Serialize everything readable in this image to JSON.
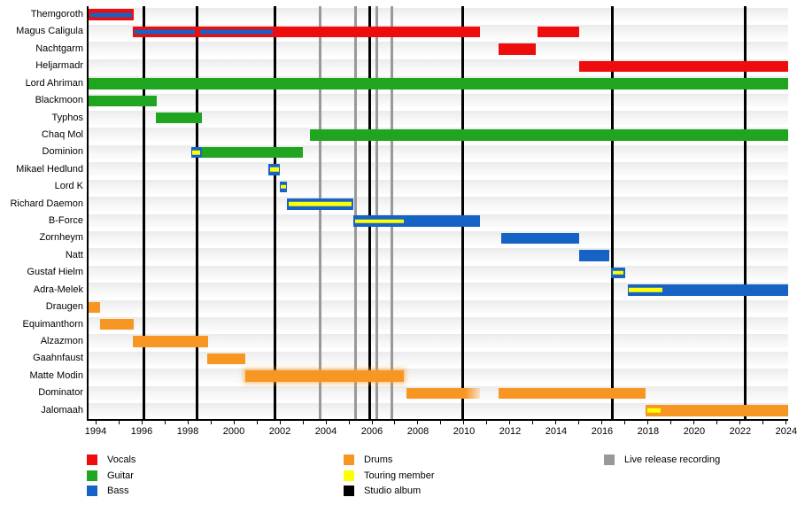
{
  "chart_data": {
    "type": "timeline",
    "title": "",
    "x_axis": {
      "start": 1993.69,
      "end": 2024.08,
      "tick_first": 1994,
      "tick_last": 2024,
      "tick_interval_years": 1,
      "labels": [
        1994,
        1996,
        1998,
        2000,
        2002,
        2004,
        2006,
        2008,
        2010,
        2012,
        2014,
        2016,
        2018,
        2020,
        2022,
        2024
      ]
    },
    "colors": {
      "vocals": "#ee0d0d",
      "guitar": "#1fa51f",
      "bass": "#1662c5",
      "drums": "#f79623",
      "touring": "#ffff00",
      "album": "#000000",
      "live": "#999999"
    },
    "album_release_lines": [
      1996.1,
      1998.4,
      2001.8,
      2005.9,
      2009.95,
      2016.45,
      2022.2
    ],
    "live_recording_lines": [
      2003.75,
      2005.3,
      2006.2,
      2006.85
    ],
    "rows": [
      {
        "name": "Themgoroth",
        "bars": [
          {
            "start": 1993.7,
            "end": 1995.65,
            "role": "vocals",
            "stripes": [
              {
                "start": 1993.78,
                "end": 1995.58,
                "role": "bass"
              }
            ]
          }
        ]
      },
      {
        "name": "Magus Caligula",
        "bars": [
          {
            "start": 1995.6,
            "end": 2010.7,
            "role": "vocals",
            "stripes": [
              {
                "start": 1995.68,
                "end": 1998.3,
                "role": "bass"
              },
              {
                "start": 1998.55,
                "end": 2001.68,
                "role": "bass"
              }
            ]
          },
          {
            "start": 2013.2,
            "end": 2015.0,
            "role": "vocals"
          }
        ]
      },
      {
        "name": "Nachtgarm",
        "bars": [
          {
            "start": 2011.5,
            "end": 2013.1,
            "role": "vocals"
          }
        ]
      },
      {
        "name": "Heljarmadr",
        "bars": [
          {
            "start": 2015.0,
            "end": 2024.08,
            "role": "vocals"
          }
        ]
      },
      {
        "name": "Lord Ahriman",
        "bars": [
          {
            "start": 1993.7,
            "end": 2024.08,
            "role": "guitar"
          }
        ]
      },
      {
        "name": "Blackmoon",
        "bars": [
          {
            "start": 1993.7,
            "end": 1996.65,
            "role": "guitar"
          }
        ]
      },
      {
        "name": "Typhos",
        "bars": [
          {
            "start": 1996.6,
            "end": 1998.6,
            "role": "guitar"
          }
        ]
      },
      {
        "name": "Chaq Mol",
        "bars": [
          {
            "start": 2003.3,
            "end": 2024.08,
            "role": "guitar"
          }
        ]
      },
      {
        "name": "Dominion",
        "bars": [
          {
            "start": 1998.15,
            "end": 1998.6,
            "role": "bass",
            "stripes": [
              {
                "start": 1998.2,
                "end": 1998.55,
                "role": "touring"
              }
            ]
          },
          {
            "start": 1998.6,
            "end": 2003.0,
            "role": "guitar"
          }
        ]
      },
      {
        "name": "Mikael Hedlund",
        "bars": [
          {
            "start": 2001.5,
            "end": 2002.0,
            "role": "bass",
            "stripes": [
              {
                "start": 2001.56,
                "end": 2001.95,
                "role": "touring"
              }
            ]
          }
        ]
      },
      {
        "name": "Lord K",
        "bars": [
          {
            "start": 2002.0,
            "end": 2002.32,
            "role": "bass",
            "stripes": [
              {
                "start": 2002.04,
                "end": 2002.28,
                "role": "touring"
              }
            ]
          }
        ]
      },
      {
        "name": "Richard Daemon",
        "bars": [
          {
            "start": 2002.3,
            "end": 2005.2,
            "role": "bass",
            "stripes": [
              {
                "start": 2002.37,
                "end": 2005.13,
                "role": "touring"
              }
            ]
          }
        ]
      },
      {
        "name": "B-Force",
        "bars": [
          {
            "start": 2005.2,
            "end": 2010.7,
            "role": "bass",
            "stripes": [
              {
                "start": 2005.27,
                "end": 2007.4,
                "role": "touring"
              }
            ]
          }
        ]
      },
      {
        "name": "Zornheym",
        "bars": [
          {
            "start": 2011.6,
            "end": 2015.0,
            "role": "bass"
          }
        ]
      },
      {
        "name": "Natt",
        "bars": [
          {
            "start": 2015.0,
            "end": 2016.3,
            "role": "bass"
          }
        ]
      },
      {
        "name": "Gustaf Hielm",
        "bars": [
          {
            "start": 2016.4,
            "end": 2017.0,
            "role": "bass",
            "stripes": [
              {
                "start": 2016.46,
                "end": 2016.94,
                "role": "touring"
              }
            ]
          }
        ]
      },
      {
        "name": "Adra-Melek",
        "bars": [
          {
            "start": 2017.1,
            "end": 2024.08,
            "role": "bass",
            "stripes": [
              {
                "start": 2017.17,
                "end": 2018.6,
                "role": "touring"
              }
            ]
          }
        ]
      },
      {
        "name": "Draugen",
        "bars": [
          {
            "start": 1993.7,
            "end": 1994.2,
            "role": "drums"
          }
        ]
      },
      {
        "name": "Equimanthorn",
        "bars": [
          {
            "start": 1994.2,
            "end": 1995.65,
            "role": "drums"
          }
        ]
      },
      {
        "name": "Alzazmon",
        "bars": [
          {
            "start": 1995.6,
            "end": 1998.9,
            "role": "drums"
          }
        ]
      },
      {
        "name": "Gaahnfaust",
        "bars": [
          {
            "start": 1998.85,
            "end": 2000.5,
            "role": "drums"
          }
        ]
      },
      {
        "name": "Matte Modin",
        "bars": [
          {
            "start": 2000.5,
            "end": 2007.4,
            "role": "drums",
            "glow": true
          }
        ]
      },
      {
        "name": "Dominator",
        "bars": [
          {
            "start": 2007.5,
            "end": 2010.7,
            "role": "drums",
            "fade": true
          },
          {
            "start": 2011.5,
            "end": 2017.9,
            "role": "drums"
          }
        ]
      },
      {
        "name": "Jalomaah",
        "bars": [
          {
            "start": 2017.9,
            "end": 2024.08,
            "role": "drums",
            "stripes": [
              {
                "start": 2017.98,
                "end": 2018.55,
                "role": "touring"
              }
            ]
          }
        ]
      }
    ],
    "legend": {
      "columns": [
        {
          "items": [
            {
              "label": "Vocals",
              "color": "vocals"
            },
            {
              "label": "Guitar",
              "color": "guitar"
            },
            {
              "label": "Bass",
              "color": "bass"
            }
          ]
        },
        {
          "items": [
            {
              "label": "Drums",
              "color": "drums"
            },
            {
              "label": "Touring member",
              "color": "touring"
            },
            {
              "label": "Studio album",
              "color": "album"
            }
          ]
        },
        {
          "items": [
            {
              "label": "Live release recording",
              "color": "live"
            }
          ]
        }
      ]
    }
  }
}
